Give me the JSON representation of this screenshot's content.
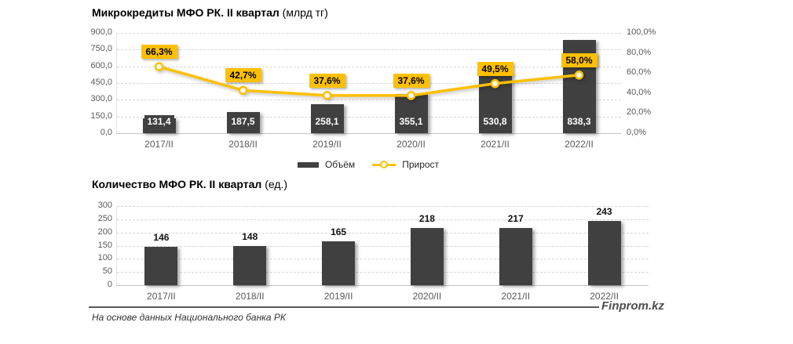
{
  "legend": {
    "bar_label": "Объём",
    "line_label": "Прирост"
  },
  "footer": {
    "note": "На основе данных Национального банка РК",
    "brand": "Finprom.kz"
  },
  "colors": {
    "bar": "#404040",
    "accent": "#FFC000",
    "axis_text": "#595959",
    "grid": "#D6D6D6",
    "value_text_on_bar": "#FFFFFF",
    "pct_text": "#000000",
    "brand_text": "#4D4D4D"
  },
  "chart_data": [
    {
      "type": "bar",
      "subtype": "combo-bar-line",
      "title": "Микрокредиты МФО РК. II квартал",
      "title_unit": "(млрд тг)",
      "categories": [
        "2017/II",
        "2018/II",
        "2019/II",
        "2020/II",
        "2021/II",
        "2022/II"
      ],
      "series": [
        {
          "name": "Объём",
          "type": "bar",
          "values": [
            131.4,
            187.5,
            258.1,
            355.1,
            530.8,
            838.3
          ],
          "labels": [
            "131,4",
            "187,5",
            "258,1",
            "355,1",
            "530,8",
            "838,3"
          ]
        },
        {
          "name": "Прирост",
          "type": "line",
          "values": [
            66.3,
            42.7,
            37.6,
            37.6,
            49.5,
            58.0
          ],
          "labels": [
            "66,3%",
            "42,7%",
            "37,6%",
            "37,6%",
            "49,5%",
            "58,0%"
          ]
        }
      ],
      "left_axis": {
        "min": 0,
        "max": 900,
        "tick_labels": [
          "900,0",
          "750,0",
          "600,0",
          "450,0",
          "300,0",
          "150,0",
          "0,0"
        ]
      },
      "right_axis": {
        "min": 0,
        "max": 100,
        "tick_labels": [
          "100,0%",
          "80,0%",
          "60,0%",
          "40,0%",
          "20,0%",
          "0,0%"
        ]
      },
      "grid": true,
      "legend_position": "bottom"
    },
    {
      "type": "bar",
      "title": "Количество МФО РК. II квартал",
      "title_unit": "(ед.)",
      "categories": [
        "2017/II",
        "2018/II",
        "2019/II",
        "2020/II",
        "2021/II",
        "2022/II"
      ],
      "values": [
        146,
        148,
        165,
        218,
        217,
        243
      ],
      "value_labels": [
        "146",
        "148",
        "165",
        "218",
        "217",
        "243"
      ],
      "left_axis": {
        "min": 0,
        "max": 300,
        "tick_labels": [
          "300",
          "250",
          "200",
          "150",
          "100",
          "50",
          "0"
        ]
      },
      "grid": true,
      "legend_position": "none"
    }
  ]
}
